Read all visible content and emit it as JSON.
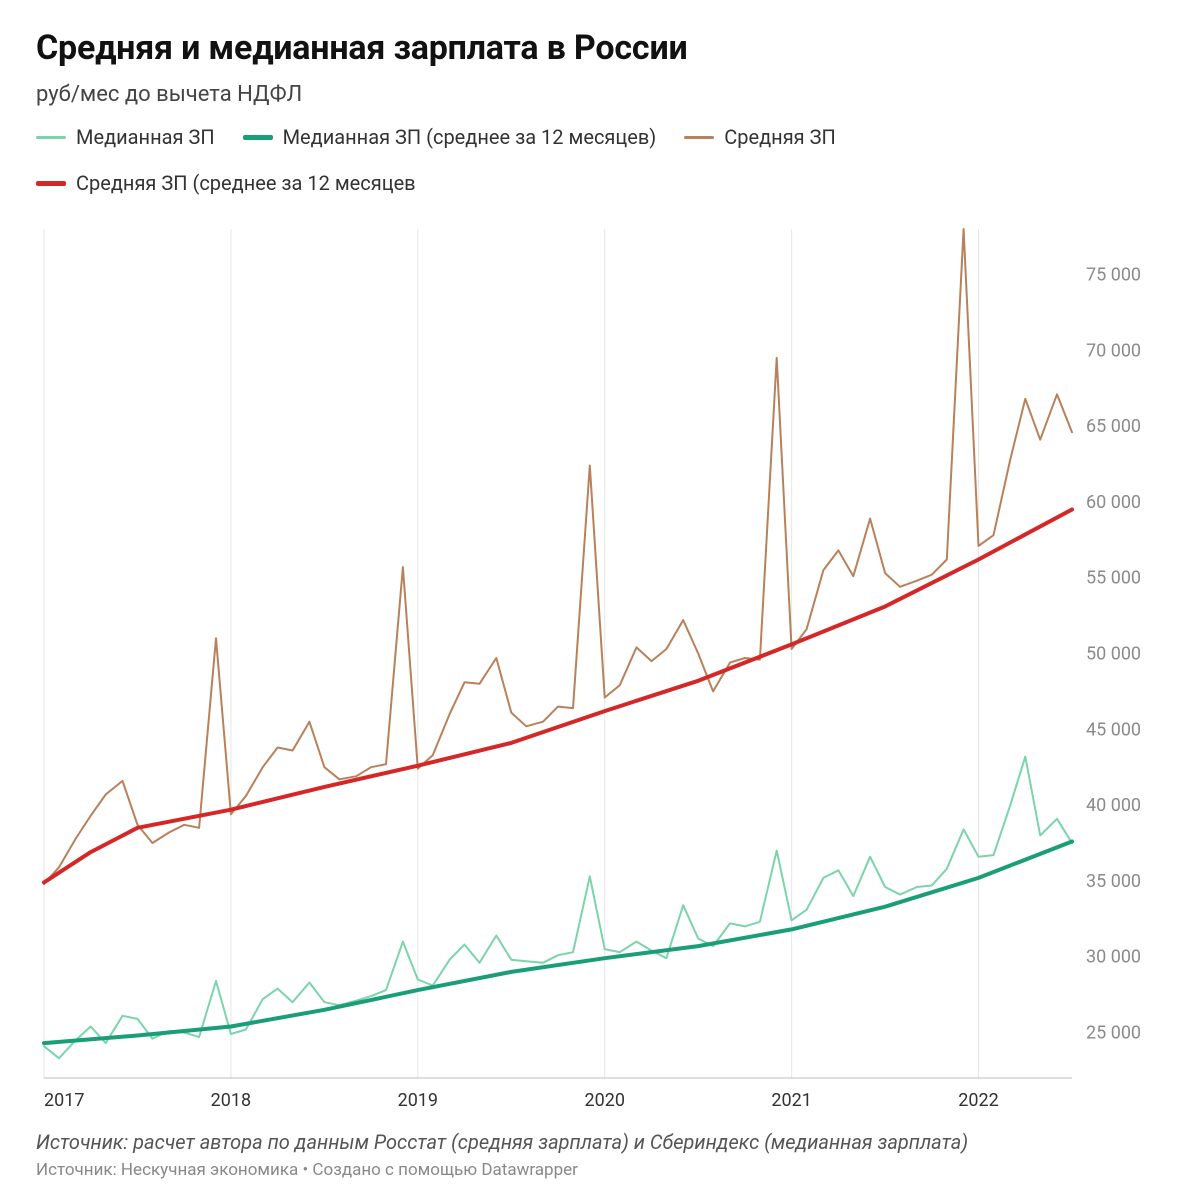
{
  "title": "Средняя и медианная зарплата в России",
  "subtitle": "руб/мес до вычета НДФЛ",
  "legend": {
    "median": "Медианная ЗП",
    "median_ma": "Медианная ЗП (среднее за 12 месяцев)",
    "mean": "Средняя ЗП",
    "mean_ma": "Средняя ЗП (среднее за 12 месяцев"
  },
  "source_note": "Источник: расчет автора по данным Росстат (средняя зарплата) и Сбериндекс (медианная зарплата)",
  "credit": "Источник: Нескучная экономика • Создано с помощью Datawrapper",
  "chart": {
    "type": "line",
    "background_color": "#ffffff",
    "grid_color": "#e6e6e6",
    "baseline_color": "#bdbdbd",
    "label_color": "#8a8a8a",
    "xlabel_color": "#333333",
    "x": {
      "start": 2017.0,
      "end": 2022.5,
      "ticks": [
        2017,
        2018,
        2019,
        2020,
        2021,
        2022
      ]
    },
    "y": {
      "min": 22000,
      "max": 78000,
      "ticks": [
        25000,
        30000,
        35000,
        40000,
        45000,
        50000,
        55000,
        60000,
        65000,
        70000,
        75000
      ],
      "tick_labels": [
        "25 000",
        "30 000",
        "35 000",
        "40 000",
        "45 000",
        "50 000",
        "55 000",
        "60 000",
        "65 000",
        "70 000",
        "75 000"
      ]
    },
    "series": {
      "median": {
        "color": "#7bd4aa",
        "width": 2,
        "points": [
          [
            2017.0,
            24100
          ],
          [
            2017.08,
            23300
          ],
          [
            2017.17,
            24500
          ],
          [
            2017.25,
            25400
          ],
          [
            2017.33,
            24300
          ],
          [
            2017.42,
            26100
          ],
          [
            2017.5,
            25900
          ],
          [
            2017.58,
            24600
          ],
          [
            2017.67,
            25100
          ],
          [
            2017.75,
            25000
          ],
          [
            2017.83,
            24700
          ],
          [
            2017.92,
            28400
          ],
          [
            2018.0,
            24900
          ],
          [
            2018.08,
            25200
          ],
          [
            2018.17,
            27200
          ],
          [
            2018.25,
            27900
          ],
          [
            2018.33,
            27000
          ],
          [
            2018.42,
            28300
          ],
          [
            2018.5,
            27000
          ],
          [
            2018.58,
            26800
          ],
          [
            2018.67,
            27100
          ],
          [
            2018.75,
            27400
          ],
          [
            2018.83,
            27800
          ],
          [
            2018.92,
            31000
          ],
          [
            2019.0,
            28500
          ],
          [
            2019.08,
            28100
          ],
          [
            2019.17,
            29800
          ],
          [
            2019.25,
            30800
          ],
          [
            2019.33,
            29600
          ],
          [
            2019.42,
            31400
          ],
          [
            2019.5,
            29800
          ],
          [
            2019.58,
            29700
          ],
          [
            2019.67,
            29600
          ],
          [
            2019.75,
            30100
          ],
          [
            2019.83,
            30300
          ],
          [
            2019.92,
            35300
          ],
          [
            2020.0,
            30500
          ],
          [
            2020.08,
            30300
          ],
          [
            2020.17,
            31000
          ],
          [
            2020.25,
            30400
          ],
          [
            2020.33,
            29900
          ],
          [
            2020.42,
            33400
          ],
          [
            2020.5,
            31200
          ],
          [
            2020.58,
            30700
          ],
          [
            2020.67,
            32200
          ],
          [
            2020.75,
            32000
          ],
          [
            2020.83,
            32300
          ],
          [
            2020.92,
            37000
          ],
          [
            2021.0,
            32400
          ],
          [
            2021.08,
            33100
          ],
          [
            2021.17,
            35200
          ],
          [
            2021.25,
            35700
          ],
          [
            2021.33,
            34000
          ],
          [
            2021.42,
            36600
          ],
          [
            2021.5,
            34600
          ],
          [
            2021.58,
            34100
          ],
          [
            2021.67,
            34600
          ],
          [
            2021.75,
            34700
          ],
          [
            2021.83,
            35800
          ],
          [
            2021.92,
            38400
          ],
          [
            2022.0,
            36600
          ],
          [
            2022.08,
            36700
          ],
          [
            2022.17,
            40000
          ],
          [
            2022.25,
            43200
          ],
          [
            2022.33,
            38000
          ],
          [
            2022.42,
            39100
          ],
          [
            2022.5,
            37500
          ]
        ]
      },
      "median_ma": {
        "color": "#1a9e77",
        "width": 4,
        "points": [
          [
            2017.0,
            24300
          ],
          [
            2017.5,
            24800
          ],
          [
            2018.0,
            25400
          ],
          [
            2018.5,
            26500
          ],
          [
            2019.0,
            27800
          ],
          [
            2019.5,
            29000
          ],
          [
            2020.0,
            29900
          ],
          [
            2020.5,
            30700
          ],
          [
            2021.0,
            31800
          ],
          [
            2021.5,
            33300
          ],
          [
            2022.0,
            35200
          ],
          [
            2022.5,
            37600
          ]
        ]
      },
      "mean": {
        "color": "#b9815b",
        "width": 2,
        "points": [
          [
            2017.0,
            34800
          ],
          [
            2017.08,
            35900
          ],
          [
            2017.17,
            37800
          ],
          [
            2017.25,
            39300
          ],
          [
            2017.33,
            40700
          ],
          [
            2017.42,
            41600
          ],
          [
            2017.5,
            38700
          ],
          [
            2017.58,
            37500
          ],
          [
            2017.67,
            38200
          ],
          [
            2017.75,
            38700
          ],
          [
            2017.83,
            38500
          ],
          [
            2017.92,
            51000
          ],
          [
            2018.0,
            39400
          ],
          [
            2018.08,
            40600
          ],
          [
            2018.17,
            42500
          ],
          [
            2018.25,
            43800
          ],
          [
            2018.33,
            43600
          ],
          [
            2018.42,
            45500
          ],
          [
            2018.5,
            42500
          ],
          [
            2018.58,
            41700
          ],
          [
            2018.67,
            41900
          ],
          [
            2018.75,
            42500
          ],
          [
            2018.83,
            42700
          ],
          [
            2018.92,
            55700
          ],
          [
            2019.0,
            42400
          ],
          [
            2019.08,
            43300
          ],
          [
            2019.17,
            46000
          ],
          [
            2019.25,
            48100
          ],
          [
            2019.33,
            48000
          ],
          [
            2019.42,
            49700
          ],
          [
            2019.5,
            46100
          ],
          [
            2019.58,
            45200
          ],
          [
            2019.67,
            45500
          ],
          [
            2019.75,
            46500
          ],
          [
            2019.83,
            46400
          ],
          [
            2019.92,
            62400
          ],
          [
            2020.0,
            47100
          ],
          [
            2020.08,
            47900
          ],
          [
            2020.17,
            50400
          ],
          [
            2020.25,
            49500
          ],
          [
            2020.33,
            50300
          ],
          [
            2020.42,
            52200
          ],
          [
            2020.5,
            50000
          ],
          [
            2020.58,
            47500
          ],
          [
            2020.67,
            49400
          ],
          [
            2020.75,
            49700
          ],
          [
            2020.83,
            49600
          ],
          [
            2020.92,
            69500
          ],
          [
            2021.0,
            50300
          ],
          [
            2021.08,
            51600
          ],
          [
            2021.17,
            55500
          ],
          [
            2021.25,
            56800
          ],
          [
            2021.33,
            55100
          ],
          [
            2021.42,
            58900
          ],
          [
            2021.5,
            55300
          ],
          [
            2021.58,
            54400
          ],
          [
            2021.67,
            54800
          ],
          [
            2021.75,
            55200
          ],
          [
            2021.83,
            56200
          ],
          [
            2021.92,
            78000
          ],
          [
            2022.0,
            57100
          ],
          [
            2022.08,
            57800
          ],
          [
            2022.17,
            62800
          ],
          [
            2022.25,
            66800
          ],
          [
            2022.33,
            64100
          ],
          [
            2022.42,
            67100
          ],
          [
            2022.5,
            64600
          ]
        ]
      },
      "mean_ma": {
        "color": "#d62728",
        "width": 4,
        "points": [
          [
            2017.0,
            34900
          ],
          [
            2017.25,
            36900
          ],
          [
            2017.5,
            38500
          ],
          [
            2018.0,
            39700
          ],
          [
            2018.5,
            41200
          ],
          [
            2019.0,
            42600
          ],
          [
            2019.5,
            44100
          ],
          [
            2020.0,
            46200
          ],
          [
            2020.5,
            48200
          ],
          [
            2021.0,
            50600
          ],
          [
            2021.5,
            53100
          ],
          [
            2022.0,
            56200
          ],
          [
            2022.5,
            59500
          ]
        ]
      }
    }
  }
}
